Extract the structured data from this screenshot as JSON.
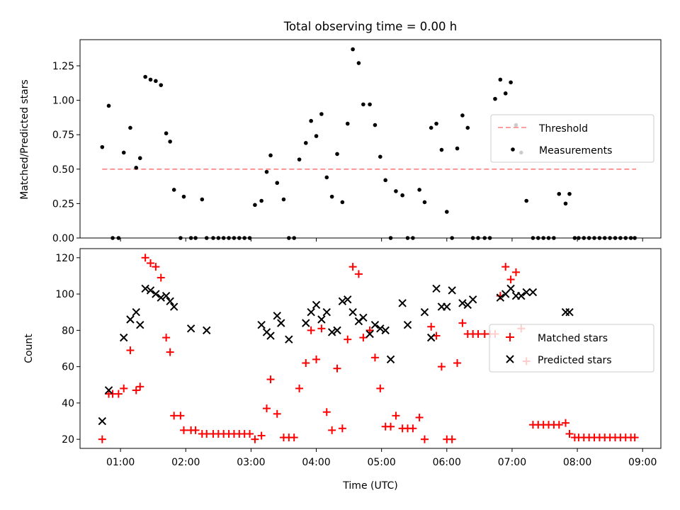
{
  "title": "Total observing time = 0.00 h",
  "chart_data": [
    {
      "type": "scatter",
      "ylabel": "Matched/Predicted stars",
      "ylim": [
        0,
        1.44
      ],
      "yticks": [
        0.0,
        0.25,
        0.5,
        0.75,
        1.0,
        1.25
      ],
      "ytick_labels": [
        "0.00",
        "0.25",
        "0.50",
        "0.75",
        "1.00",
        "1.25"
      ],
      "legend_position": "right",
      "threshold": {
        "name": "Threshold",
        "value": 0.5,
        "x_start": 0.72,
        "x_end": 8.9,
        "color": "#ff7f7f"
      },
      "measurements": {
        "name": "Measurements",
        "color": "#000000",
        "x": [
          0.72,
          0.82,
          0.88,
          0.97,
          1.05,
          1.15,
          1.24,
          1.3,
          1.38,
          1.46,
          1.54,
          1.62,
          1.7,
          1.76,
          1.82,
          1.92,
          1.97,
          2.08,
          2.15,
          2.25,
          2.32,
          2.42,
          2.5,
          2.58,
          2.66,
          2.74,
          2.82,
          2.9,
          2.98,
          3.06,
          3.16,
          3.24,
          3.3,
          3.4,
          3.5,
          3.58,
          3.66,
          3.74,
          3.84,
          3.92,
          4.0,
          4.08,
          4.16,
          4.24,
          4.32,
          4.4,
          4.48,
          4.56,
          4.65,
          4.72,
          4.82,
          4.9,
          4.98,
          5.06,
          5.14,
          5.22,
          5.32,
          5.4,
          5.48,
          5.58,
          5.66,
          5.76,
          5.84,
          5.92,
          6.0,
          6.08,
          6.16,
          6.24,
          6.32,
          6.4,
          6.48,
          6.58,
          6.66,
          6.74,
          6.82,
          6.9,
          6.98,
          7.06,
          7.14,
          7.22,
          7.32,
          7.4,
          7.48,
          7.56,
          7.64,
          7.72,
          7.82,
          7.88,
          7.96,
          8.02,
          8.1,
          8.18,
          8.26,
          8.34,
          8.42,
          8.5,
          8.58,
          8.66,
          8.74,
          8.82,
          8.88
        ],
        "y": [
          0.66,
          0.96,
          0.0,
          0.0,
          0.62,
          0.8,
          0.51,
          0.58,
          1.17,
          1.15,
          1.14,
          1.11,
          0.76,
          0.7,
          0.35,
          0.0,
          0.3,
          0.0,
          0.0,
          0.28,
          0.0,
          0.0,
          0.0,
          0.0,
          0.0,
          0.0,
          0.0,
          0.0,
          0.0,
          0.24,
          0.27,
          0.48,
          0.6,
          0.4,
          0.28,
          0.0,
          0.0,
          0.57,
          0.69,
          0.85,
          0.74,
          0.9,
          0.44,
          0.3,
          0.61,
          0.26,
          0.83,
          1.37,
          1.27,
          0.97,
          0.97,
          0.82,
          0.59,
          0.42,
          0.0,
          0.34,
          0.31,
          0.0,
          0.0,
          0.35,
          0.26,
          0.8,
          0.83,
          0.64,
          0.19,
          0.0,
          0.65,
          0.89,
          0.8,
          0.0,
          0.0,
          0.0,
          0.0,
          1.01,
          1.15,
          1.05,
          1.13,
          0.82,
          0.62,
          0.27,
          0.0,
          0.0,
          0.0,
          0.0,
          0.0,
          0.32,
          0.25,
          0.32,
          0.0,
          0.0,
          0.0,
          0.0,
          0.0,
          0.0,
          0.0,
          0.0,
          0.0,
          0.0,
          0.0,
          0.0,
          0.0
        ]
      }
    },
    {
      "type": "scatter",
      "xlabel": "Time (UTC)",
      "ylabel": "Count",
      "xlim": [
        0.38,
        9.28
      ],
      "ylim": [
        15,
        125
      ],
      "xticks": [
        1,
        2,
        3,
        4,
        5,
        6,
        7,
        8,
        9
      ],
      "xtick_labels": [
        "01:00",
        "02:00",
        "03:00",
        "04:00",
        "05:00",
        "06:00",
        "07:00",
        "08:00",
        "09:00"
      ],
      "yticks": [
        20,
        40,
        60,
        80,
        100,
        120
      ],
      "ytick_labels": [
        "20",
        "40",
        "60",
        "80",
        "100",
        "120"
      ],
      "legend_position": "right",
      "series": [
        {
          "name": "Matched stars",
          "marker": "+",
          "color": "#ff0000",
          "x": [
            0.72,
            0.82,
            0.88,
            0.97,
            1.05,
            1.15,
            1.24,
            1.3,
            1.38,
            1.46,
            1.54,
            1.62,
            1.7,
            1.76,
            1.82,
            1.92,
            1.97,
            2.08,
            2.15,
            2.25,
            2.32,
            2.42,
            2.5,
            2.58,
            2.66,
            2.74,
            2.82,
            2.9,
            2.98,
            3.06,
            3.16,
            3.24,
            3.3,
            3.4,
            3.5,
            3.58,
            3.66,
            3.74,
            3.84,
            3.92,
            4.0,
            4.08,
            4.16,
            4.24,
            4.32,
            4.4,
            4.48,
            4.56,
            4.65,
            4.72,
            4.82,
            4.9,
            4.98,
            5.06,
            5.14,
            5.22,
            5.32,
            5.4,
            5.48,
            5.58,
            5.66,
            5.76,
            5.84,
            5.92,
            6.0,
            6.08,
            6.16,
            6.24,
            6.32,
            6.4,
            6.48,
            6.58,
            6.66,
            6.74,
            6.82,
            6.9,
            6.98,
            7.06,
            7.14,
            7.22,
            7.32,
            7.4,
            7.48,
            7.56,
            7.64,
            7.72,
            7.82,
            7.88,
            7.96,
            8.02,
            8.1,
            8.18,
            8.26,
            8.34,
            8.42,
            8.5,
            8.58,
            8.66,
            8.74,
            8.82,
            8.88
          ],
          "y": [
            20,
            45,
            45,
            45,
            48,
            69,
            47,
            49,
            120,
            117,
            115,
            109,
            76,
            68,
            33,
            33,
            25,
            25,
            25,
            23,
            23,
            23,
            23,
            23,
            23,
            23,
            23,
            23,
            23,
            20,
            22,
            37,
            53,
            34,
            21,
            21,
            21,
            48,
            62,
            80,
            64,
            81,
            35,
            25,
            59,
            26,
            75,
            115,
            111,
            76,
            80,
            65,
            48,
            27,
            27,
            33,
            26,
            26,
            26,
            32,
            20,
            82,
            77,
            60,
            20,
            20,
            62,
            84,
            78,
            78,
            78,
            78,
            78,
            78,
            99,
            115,
            108,
            112,
            81,
            63,
            28,
            28,
            28,
            28,
            28,
            28,
            29,
            23,
            21,
            21,
            21,
            21,
            21,
            21,
            21,
            21,
            21,
            21,
            21,
            21,
            21
          ]
        },
        {
          "name": "Predicted stars",
          "marker": "x",
          "color": "#000000",
          "x": [
            0.72,
            0.82,
            1.05,
            1.15,
            1.24,
            1.3,
            1.38,
            1.46,
            1.54,
            1.62,
            1.7,
            1.76,
            1.82,
            2.08,
            2.32,
            3.16,
            3.24,
            3.3,
            3.4,
            3.46,
            3.58,
            3.84,
            3.92,
            4.0,
            4.08,
            4.16,
            4.24,
            4.32,
            4.4,
            4.48,
            4.56,
            4.65,
            4.72,
            4.82,
            4.9,
            4.98,
            5.06,
            5.14,
            5.32,
            5.4,
            5.66,
            5.76,
            5.84,
            5.92,
            6.0,
            6.08,
            6.24,
            6.32,
            6.4,
            6.82,
            6.9,
            6.98,
            7.06,
            7.14,
            7.22,
            7.32,
            7.82,
            7.88
          ],
          "y": [
            30,
            47,
            76,
            86,
            90,
            83,
            103,
            102,
            100,
            98,
            99,
            96,
            93,
            81,
            80,
            83,
            79,
            77,
            88,
            84,
            75,
            84,
            90,
            94,
            86,
            90,
            79,
            80,
            96,
            97,
            90,
            85,
            87,
            78,
            83,
            81,
            80,
            64,
            95,
            83,
            90,
            76,
            103,
            93,
            93,
            102,
            95,
            94,
            97,
            98,
            100,
            103,
            99,
            99,
            101,
            101,
            90,
            90
          ]
        }
      ]
    }
  ]
}
